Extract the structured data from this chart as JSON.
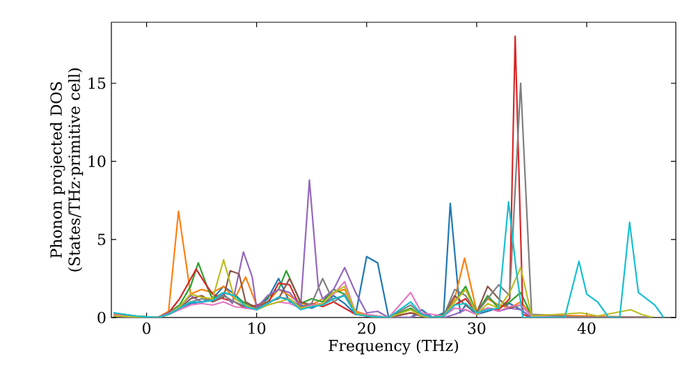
{
  "chart_data": {
    "type": "line",
    "xlabel": "Frequency (THz)",
    "ylabel": "Phonon projected DOS (States/THz·primitive cell)",
    "xlim": [
      -3.2,
      48.1
    ],
    "ylim": [
      0,
      18.9
    ],
    "xticks": [
      0,
      10,
      20,
      30,
      40
    ],
    "yticks": [
      0,
      5,
      10,
      15
    ],
    "grid": false,
    "marker": "none",
    "line_style": "solid",
    "series": [
      {
        "color": "#1f77b4",
        "x": [
          -3,
          -1,
          1,
          2,
          3,
          4,
          5,
          6,
          7,
          8,
          9,
          10,
          11,
          12,
          13,
          14,
          15,
          16,
          17,
          18,
          19,
          20,
          21,
          22,
          24,
          25,
          26,
          27,
          27.6,
          28.5,
          29,
          30,
          31,
          32,
          33,
          34,
          35,
          38,
          42,
          46
        ],
        "values": [
          0.3,
          0.1,
          0,
          0.3,
          0.6,
          0.9,
          1.0,
          1.2,
          2.0,
          1.5,
          0.8,
          0.6,
          1.2,
          2.5,
          1.0,
          0.8,
          0.6,
          0.9,
          1.4,
          0.9,
          0.2,
          3.9,
          3.5,
          0,
          0,
          0.5,
          0,
          0.3,
          7.3,
          0.3,
          0.8,
          0.2,
          0.4,
          0.6,
          0.9,
          0.5,
          0,
          0,
          0,
          0
        ]
      },
      {
        "color": "#ff7f0e",
        "x": [
          -3,
          -1,
          1,
          2,
          2.9,
          4,
          5,
          6,
          7,
          8,
          9,
          10,
          11,
          12,
          13,
          14,
          15,
          16,
          17,
          18,
          19,
          20,
          22,
          24,
          25,
          26,
          27,
          28,
          28.9,
          30,
          31,
          32,
          33,
          34,
          35,
          40,
          46
        ],
        "values": [
          0.2,
          0.1,
          0,
          0.4,
          6.8,
          1.5,
          1.8,
          1.6,
          2.0,
          1.2,
          2.6,
          0.8,
          1.0,
          1.8,
          1.4,
          0.9,
          0.8,
          1.2,
          1.6,
          1.8,
          0.4,
          0.2,
          0,
          0.3,
          0.2,
          0,
          0.2,
          1.2,
          3.8,
          0.4,
          1.2,
          0.8,
          0.6,
          1.0,
          0.2,
          0.1,
          0
        ]
      },
      {
        "color": "#2ca02c",
        "x": [
          -3,
          -1,
          1,
          2,
          3,
          4,
          4.7,
          5.6,
          6,
          7,
          8,
          9,
          10,
          11,
          12,
          12.7,
          13.6,
          14,
          15,
          16,
          17,
          18,
          19,
          20,
          22,
          24,
          25,
          26,
          27,
          28,
          29,
          30,
          31,
          32,
          33,
          34,
          35,
          40,
          46
        ],
        "values": [
          0.1,
          0.1,
          0,
          0.3,
          0.8,
          2.0,
          3.5,
          1.8,
          1.2,
          1.6,
          1.4,
          0.9,
          0.7,
          1.3,
          1.8,
          3.0,
          1.6,
          0.9,
          1.2,
          1.0,
          1.8,
          1.5,
          0.3,
          0.1,
          0,
          0.6,
          0.1,
          0,
          0.2,
          1.0,
          2.0,
          0.3,
          1.4,
          0.6,
          1.0,
          1.6,
          0.1,
          0,
          0
        ]
      },
      {
        "color": "#d62728",
        "x": [
          -3,
          -1,
          1,
          2,
          3,
          4.5,
          5.5,
          6,
          7,
          8,
          9,
          10,
          11,
          12,
          13,
          14,
          15,
          16,
          17,
          18,
          19,
          20,
          22,
          24,
          25,
          26,
          27,
          28,
          29,
          30,
          31,
          32,
          33,
          33.5,
          34.2,
          35,
          40,
          46
        ],
        "values": [
          0.1,
          0.05,
          0,
          0.3,
          1.2,
          3.1,
          2.0,
          1.5,
          1.2,
          1.0,
          0.6,
          0.8,
          0.9,
          2.2,
          2.1,
          0.6,
          0.9,
          0.7,
          1.0,
          0.6,
          0.2,
          0.1,
          0,
          0.3,
          0.1,
          0,
          0.1,
          0.8,
          1.2,
          0.3,
          0.6,
          0.5,
          1.2,
          18.0,
          0.2,
          0,
          0,
          0
        ]
      },
      {
        "color": "#9467bd",
        "x": [
          -3,
          -1,
          1,
          2,
          3,
          4,
          5,
          6,
          7,
          7.8,
          8.8,
          9.6,
          10,
          11,
          12,
          13,
          14,
          14.8,
          15.6,
          16,
          17,
          18,
          19,
          20,
          21,
          22,
          24,
          25,
          26,
          27,
          28,
          29,
          30,
          31,
          32,
          33,
          34,
          35,
          40,
          46
        ],
        "values": [
          0.1,
          0.05,
          0,
          0.3,
          0.7,
          1.4,
          1.0,
          1.1,
          1.5,
          0.9,
          4.2,
          2.6,
          0.6,
          1.4,
          1.8,
          1.6,
          0.7,
          8.8,
          2.0,
          1.2,
          1.8,
          3.2,
          1.6,
          0.3,
          0.4,
          0,
          0,
          0.3,
          0,
          0,
          0.2,
          0.5,
          0.2,
          0.6,
          0.4,
          0.6,
          0.5,
          0,
          0,
          0
        ]
      },
      {
        "color": "#8c564b",
        "x": [
          -3,
          -1,
          1,
          2,
          3,
          4,
          5,
          6,
          7,
          7.6,
          8.4,
          9,
          10,
          11,
          12,
          13,
          14,
          15,
          16,
          17,
          18,
          19,
          20,
          22,
          24,
          25,
          26,
          27,
          28,
          29,
          30,
          31,
          32,
          33,
          34,
          35,
          40,
          46
        ],
        "values": [
          0.1,
          0.05,
          0,
          0.2,
          0.6,
          1.2,
          1.4,
          1.0,
          1.3,
          3.0,
          2.8,
          1.0,
          0.6,
          1.0,
          1.2,
          2.5,
          1.0,
          0.8,
          0.9,
          1.2,
          1.4,
          0.3,
          0.1,
          0,
          0.3,
          0.1,
          0,
          0.1,
          1.4,
          0.8,
          0.3,
          2.0,
          1.2,
          0.6,
          0.8,
          0.1,
          0,
          0
        ]
      },
      {
        "color": "#e377c2",
        "x": [
          -3,
          -1,
          1,
          2,
          3,
          4,
          5,
          6,
          7,
          8,
          9,
          10,
          11,
          12,
          13,
          14,
          15,
          16,
          17,
          18,
          19,
          20,
          22,
          24,
          25,
          26,
          27,
          28,
          29,
          30,
          31,
          32,
          33,
          34,
          35,
          40,
          46
        ],
        "values": [
          0.15,
          0.05,
          0,
          0.2,
          0.5,
          0.8,
          0.9,
          0.8,
          1.0,
          0.7,
          0.6,
          0.5,
          0.8,
          1.0,
          0.9,
          0.6,
          0.8,
          0.9,
          1.5,
          2.3,
          0.3,
          0.2,
          0,
          1.6,
          0.3,
          0.2,
          0.1,
          0.6,
          0.5,
          0.2,
          0.6,
          0.4,
          0.7,
          0.8,
          0.1,
          0,
          0
        ]
      },
      {
        "color": "#7f7f7f",
        "x": [
          -3,
          -1,
          1,
          2,
          3,
          4,
          5,
          6,
          7,
          8,
          9,
          10,
          11,
          12,
          13,
          14,
          15,
          16,
          17,
          18,
          19,
          20,
          22,
          24,
          25,
          26,
          27,
          28,
          29,
          30,
          31,
          32,
          33,
          34,
          35,
          40,
          46
        ],
        "values": [
          0.1,
          0.05,
          0,
          0.2,
          0.6,
          1.0,
          1.2,
          1.1,
          1.4,
          1.0,
          0.7,
          0.6,
          0.9,
          1.3,
          1.2,
          0.7,
          0.9,
          2.5,
          1.0,
          1.5,
          0.3,
          0.1,
          0,
          0.8,
          0.2,
          0,
          0.1,
          1.8,
          1.4,
          0.3,
          1.2,
          2.1,
          1.4,
          15.0,
          0.2,
          0,
          0
        ]
      },
      {
        "color": "#bcbd22",
        "x": [
          -3,
          -1,
          1,
          2,
          3,
          4,
          5,
          6,
          7,
          8,
          9,
          10,
          11,
          12,
          13,
          14,
          15,
          16,
          17,
          18,
          19,
          20,
          22,
          24,
          25,
          26,
          27,
          28,
          29,
          30,
          31,
          32,
          33,
          34,
          35,
          39.5,
          41,
          44,
          45,
          46
        ],
        "values": [
          0.1,
          0.05,
          0,
          0.2,
          0.7,
          1.5,
          1.3,
          1.2,
          3.7,
          1.2,
          0.8,
          0.5,
          0.8,
          1.0,
          1.2,
          0.6,
          0.7,
          0.9,
          1.6,
          2.0,
          0.3,
          0.1,
          0,
          0.5,
          0.1,
          0,
          0.1,
          1.0,
          1.8,
          0.2,
          0.9,
          0.6,
          1.6,
          3.2,
          0.1,
          0.3,
          0.1,
          0.5,
          0.2,
          0
        ]
      },
      {
        "color": "#17becf",
        "x": [
          -3,
          -1,
          1,
          2,
          3,
          4,
          5,
          6,
          7,
          8,
          9,
          10,
          11,
          12,
          13,
          14,
          15,
          16,
          17,
          18,
          19,
          20,
          22,
          24,
          25,
          26,
          27,
          28,
          29,
          30,
          31,
          32,
          32.9,
          33.6,
          34.2,
          38,
          39.3,
          40,
          41,
          42,
          43,
          43.9,
          44.7,
          46.2,
          47
        ],
        "values": [
          0.3,
          0.1,
          0,
          0.2,
          0.6,
          1.0,
          1.0,
          1.1,
          1.6,
          1.4,
          0.7,
          0.5,
          0.9,
          1.3,
          1.1,
          0.5,
          0.7,
          0.8,
          1.2,
          1.4,
          0.2,
          0.1,
          0,
          1.0,
          0.2,
          0,
          0.1,
          0.8,
          0.9,
          0.3,
          0.5,
          0.6,
          7.4,
          3.0,
          0,
          0,
          3.6,
          1.5,
          1.0,
          0,
          0,
          6.1,
          1.6,
          0.8,
          0
        ]
      }
    ]
  }
}
